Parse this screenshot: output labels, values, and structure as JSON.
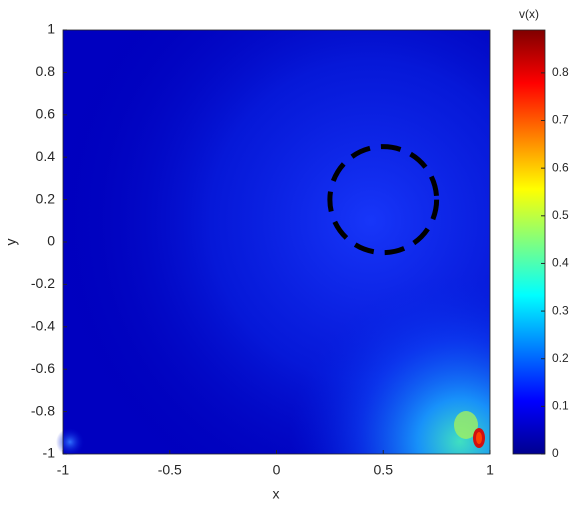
{
  "chart_data": {
    "type": "heatmap",
    "xlabel": "x",
    "ylabel": "y",
    "colorbar_label": "v(x)",
    "colormap": "jet",
    "xlim": [
      -1,
      1
    ],
    "xticks": [
      -1,
      -0.5,
      0,
      0.5,
      1
    ],
    "ylim": [
      -1,
      1
    ],
    "yticks": [
      -1,
      -0.8,
      -0.6,
      -0.4,
      -0.2,
      0,
      0.2,
      0.4,
      0.6,
      0.8,
      1
    ],
    "clim": [
      0,
      0.89
    ],
    "cticks": [
      0,
      0.1,
      0.2,
      0.3,
      0.4,
      0.5,
      0.6,
      0.7,
      0.8
    ],
    "circle": {
      "x": 0.5,
      "y": 0.2,
      "r": 0.25
    }
  }
}
